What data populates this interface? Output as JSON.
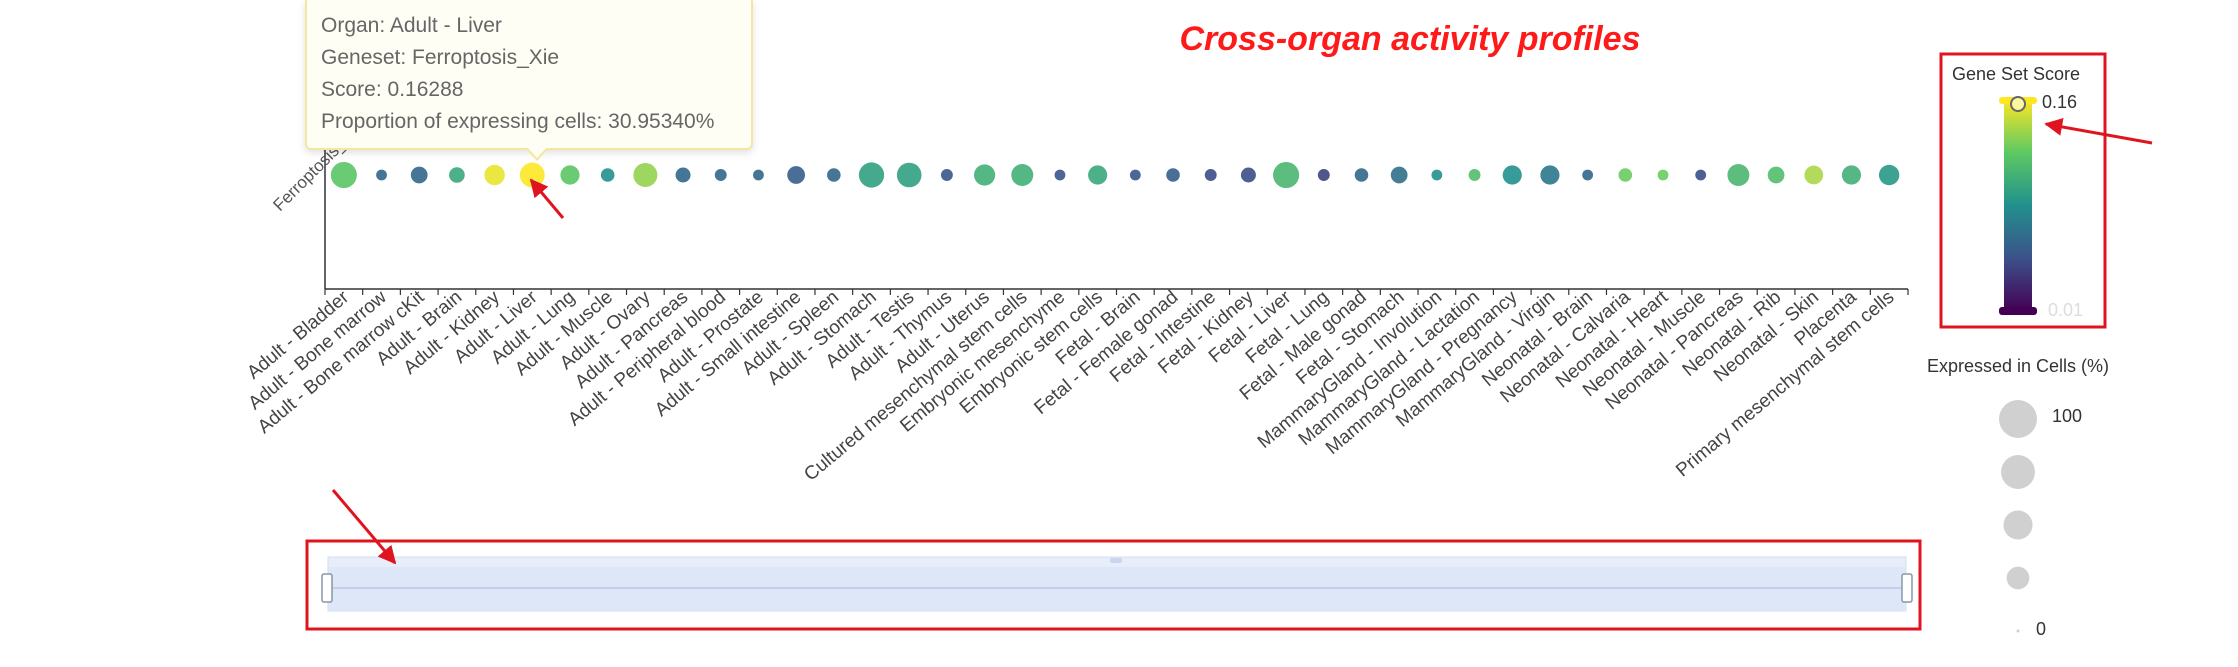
{
  "title": "Cross-organ activity profiles",
  "tooltip": {
    "organ": "Organ: Adult - Liver",
    "geneset": "Geneset: Ferroptosis_Xie",
    "score": "Score: 0.16288",
    "proportion": "Proportion of expressing cells: 30.95340%"
  },
  "colorbar": {
    "title": "Gene Set Score",
    "max_label": "0.16",
    "min_label": "0.01",
    "max": 0.16,
    "min": 0.01
  },
  "size_legend": {
    "title": "Expressed in Cells (%)",
    "top_label": "100",
    "bottom_label": "0",
    "levels": [
      100,
      75,
      50,
      25,
      0
    ]
  },
  "colors": {
    "title_red": "#ff1a1a",
    "annotation_red": "#e0141e",
    "axis": "#333333",
    "datazoom_fill": "#dbe5f7",
    "datazoom_border": "#c9d6f0"
  },
  "chart_data": {
    "type": "scatter",
    "y_categories": [
      "Ferroptosis_Xie"
    ],
    "categories": [
      "Adult - Bladder",
      "Adult - Bone marrow",
      "Adult - Bone marrow cKit",
      "Adult - Brain",
      "Adult - Kidney",
      "Adult - Liver",
      "Adult - Lung",
      "Adult - Muscle",
      "Adult - Ovary",
      "Adult - Pancreas",
      "Adult - Peripheral blood",
      "Adult - Prostate",
      "Adult - Small intestine",
      "Adult - Spleen",
      "Adult - Stomach",
      "Adult - Testis",
      "Adult - Thymus",
      "Adult - Uterus",
      "Cultured mesenchymal stem cells",
      "Embryonic mesenchyme",
      "Embryonic stem cells",
      "Fetal - Brain",
      "Fetal - Female gonad",
      "Fetal - Intestine",
      "Fetal - Kidney",
      "Fetal - Liver",
      "Fetal - Lung",
      "Fetal - Male gonad",
      "Fetal - Stomach",
      "MammaryGland - Involution",
      "MammaryGland - Lactation",
      "MammaryGland - Pregnancy",
      "MammaryGland - Virgin",
      "Neonatal - Brain",
      "Neonatal - Calvaria",
      "Neonatal - Heart",
      "Neonatal - Muscle",
      "Neonatal - Pancreas",
      "Neonatal - Rib",
      "Neonatal - Skin",
      "Placenta",
      "Primary mesenchymal stem cells"
    ],
    "series": [
      {
        "score": [
          0.12,
          0.06,
          0.06,
          0.1,
          0.155,
          0.16288,
          0.12,
          0.085,
          0.135,
          0.06,
          0.06,
          0.06,
          0.055,
          0.06,
          0.095,
          0.095,
          0.05,
          0.105,
          0.105,
          0.05,
          0.1,
          0.05,
          0.055,
          0.045,
          0.045,
          0.11,
          0.04,
          0.06,
          0.065,
          0.085,
          0.115,
          0.085,
          0.07,
          0.06,
          0.125,
          0.125,
          0.045,
          0.11,
          0.115,
          0.14,
          0.105,
          0.09
        ],
        "expressed_pct": [
          35,
          2,
          10,
          8,
          18,
          30.9534,
          15,
          5,
          28,
          7,
          3,
          2,
          12,
          5,
          32,
          30,
          3,
          20,
          22,
          2,
          15,
          2,
          5,
          3,
          7,
          35,
          3,
          5,
          10,
          2,
          3,
          15,
          15,
          2,
          5,
          2,
          2,
          22,
          10,
          14,
          15,
          18
        ]
      }
    ],
    "xlabel": "",
    "ylabel": ""
  }
}
